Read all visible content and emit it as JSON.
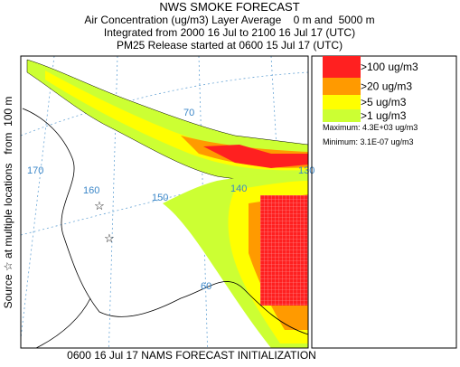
{
  "header": {
    "title": "NWS SMOKE FORECAST",
    "lines": [
      "Air Concentration (ug/m3) Layer Average    0 m and  5000 m",
      "Integrated from 2000 16 Jul to 2100 16 Jul 17 (UTC)",
      "PM25 Release started at 0600 15 Jul 17 (UTC)"
    ]
  },
  "side_label": "Source ☆ at multiple locations   from  100 m",
  "legend": {
    "items": [
      {
        "label": ">100 ug/m3",
        "color": "#ff2020"
      },
      {
        "label": ">20 ug/m3",
        "color": "#ff9a00"
      },
      {
        "label": ">5 ug/m3",
        "color": "#ffff00"
      },
      {
        "label": ">1 ug/m3",
        "color": "#ccff33"
      }
    ],
    "maximum": "Maximum: 4.3E+03 ug/m3",
    "minimum": "Minimum: 3.1E-07 ug/m3"
  },
  "map": {
    "grid_labels": [
      "170",
      "160",
      "150",
      "70",
      "60",
      "130",
      "140"
    ]
  },
  "footer": "0600 16 Jul 17 NAMS FORECAST INITIALIZATION"
}
